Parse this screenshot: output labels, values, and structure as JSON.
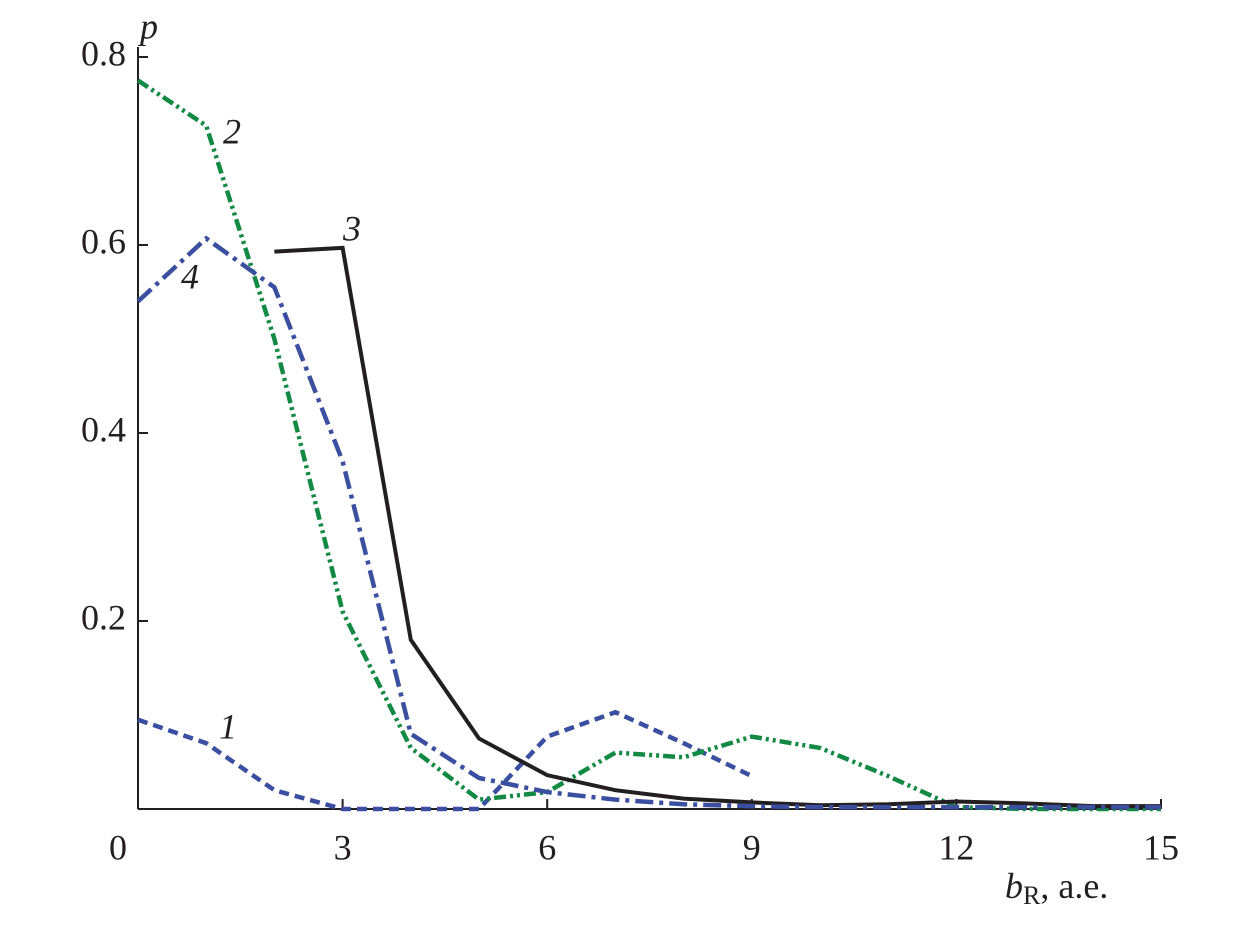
{
  "chart_data": {
    "type": "line",
    "y_label": "p",
    "x_label": {
      "main": "b",
      "sub": "R",
      "rest": ", a.e."
    },
    "x": [
      0,
      1,
      2,
      3,
      4,
      5,
      6,
      7,
      8,
      9,
      10,
      11,
      12,
      13,
      14,
      15
    ],
    "xlim": [
      0,
      15
    ],
    "xticks": [
      0,
      3,
      6,
      9,
      12,
      15
    ],
    "ylim": [
      0,
      0.8
    ],
    "yticks": [
      0.2,
      0.4,
      0.6,
      0.8
    ],
    "series": [
      {
        "name": "1",
        "color": "#3a4fa0",
        "line_style": "dashed",
        "values": [
          0.095,
          0.07,
          0.02,
          0,
          0,
          0,
          0.077,
          0.103,
          0.07,
          0.035,
          null,
          null,
          null,
          null,
          null,
          null
        ]
      },
      {
        "name": "2",
        "color": "#138a43",
        "line_style": "dash-dot-dot",
        "values": [
          0.775,
          0.727,
          0.5,
          0.21,
          0.065,
          0.01,
          0.018,
          0.06,
          0.055,
          0.077,
          0.065,
          0.035,
          0.002,
          0,
          0,
          0
        ]
      },
      {
        "name": "3",
        "color": "#231f20",
        "line_style": "solid",
        "values": [
          null,
          null,
          0.593,
          0.597,
          0.18,
          0.075,
          0.036,
          0.02,
          0.011,
          0.007,
          0.004,
          0.005,
          0.008,
          0.006,
          0.003,
          0.003
        ]
      },
      {
        "name": "4",
        "color": "#3a4fa0",
        "line_style": "dash-dot",
        "values": [
          0.54,
          0.607,
          0.555,
          0.37,
          0.08,
          0.033,
          0.018,
          0.01,
          0.005,
          0.003,
          0.002,
          0.002,
          0.002,
          0.002,
          0.002,
          0.002
        ]
      }
    ]
  }
}
